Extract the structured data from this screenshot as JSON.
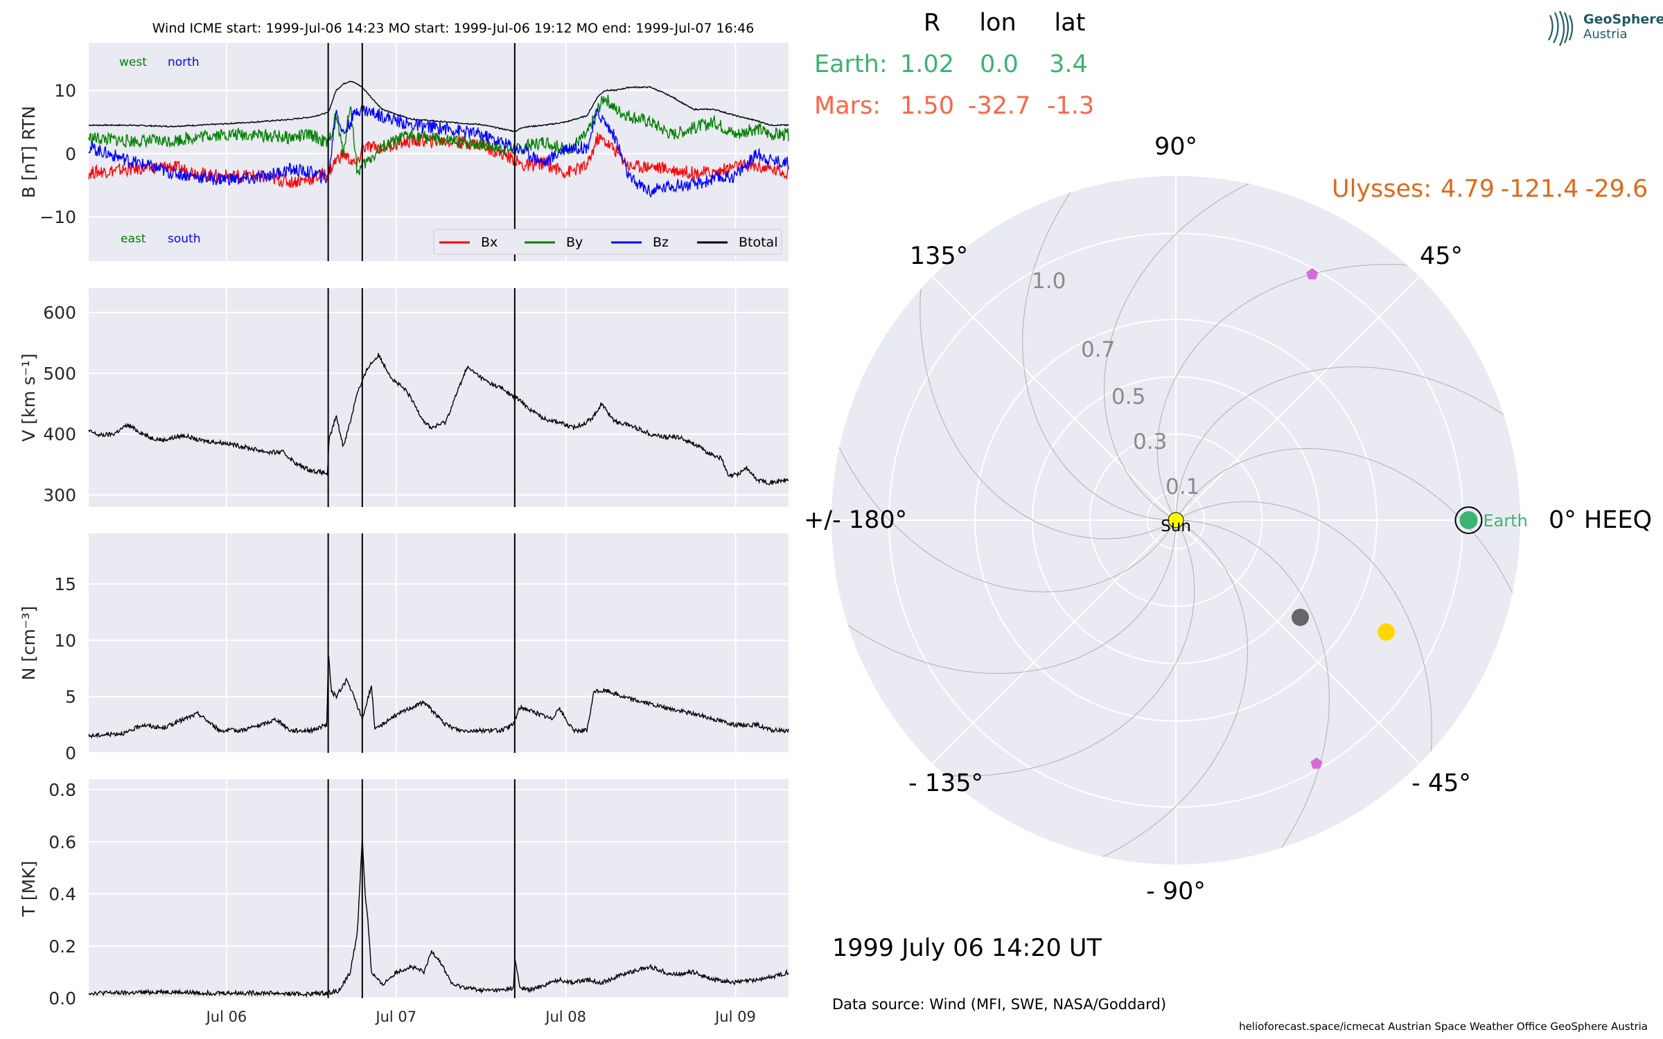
{
  "timeseries": {
    "title": "Wind    ICME start: 1999-Jul-06 14:23   MO start: 1999-Jul-06 19:12   MO end: 1999-Jul-07 16:46",
    "x_tick_labels": [
      "Jul 06",
      "Jul 07",
      "Jul 08",
      "Jul 09"
    ],
    "x_tick_hours": [
      24,
      48,
      72,
      96
    ],
    "x_range_hours": [
      4.5,
      103.5
    ],
    "x_origin": "1999-07-05 00:00 UT",
    "event_lines_hours": [
      38.38,
      43.2,
      64.77
    ],
    "panels": [
      {
        "key": "B",
        "ylabel": "B [nT] RTN",
        "ylim": [
          -17,
          17.5
        ],
        "yticks": [
          -10,
          0,
          10
        ],
        "ytick_labels": [
          "−10",
          "0",
          "10"
        ]
      },
      {
        "key": "V",
        "ylabel": "V [km s⁻¹]",
        "ylim": [
          280,
          640
        ],
        "yticks": [
          300,
          400,
          500,
          600
        ],
        "ytick_labels": [
          "300",
          "400",
          "500",
          "600"
        ]
      },
      {
        "key": "N",
        "ylabel": "N [cm⁻³]",
        "ylim": [
          0,
          19.5
        ],
        "yticks": [
          0,
          5,
          10,
          15
        ],
        "ytick_labels": [
          "0",
          "5",
          "10",
          "15"
        ]
      },
      {
        "key": "T",
        "ylabel": "T [MK]",
        "ylim": [
          0,
          0.84
        ],
        "yticks": [
          0.0,
          0.2,
          0.4,
          0.6,
          0.8
        ],
        "ytick_labels": [
          "0.0",
          "0.2",
          "0.4",
          "0.6",
          "0.8"
        ]
      }
    ],
    "direction_labels": {
      "west": "west",
      "north": "north",
      "east": "east",
      "south": "south"
    },
    "legend": [
      {
        "name": "Bx",
        "color": "#ff0000"
      },
      {
        "name": "By",
        "color": "#008000"
      },
      {
        "name": "Bz",
        "color": "#0000ff"
      },
      {
        "name": "Btotal",
        "color": "#000000"
      }
    ]
  },
  "chart_data": [
    {
      "type": "line",
      "title": "Wind    ICME start: 1999-Jul-06 14:23   MO start: 1999-Jul-06 19:12   MO end: 1999-Jul-07 16:46",
      "ylabel": "B [nT] RTN",
      "ylim": [
        -17,
        17.5
      ],
      "x_unit": "hours since 1999-07-05 00:00 UT",
      "x": [
        4.5,
        10,
        16,
        22,
        28,
        33,
        36,
        38.4,
        39.5,
        40.5,
        41.5,
        42.5,
        43.2,
        46,
        50,
        55,
        60,
        64.8,
        66,
        69,
        72,
        75,
        76.5,
        77.5,
        79,
        81,
        84,
        87,
        90,
        93,
        96,
        99,
        101,
        103.5
      ],
      "series": [
        {
          "name": "Btotal",
          "color": "#000000",
          "values": [
            4.5,
            4.5,
            4.3,
            4.6,
            5.0,
            5.4,
            5.8,
            6.5,
            10.0,
            11.0,
            11.5,
            11.0,
            10.5,
            7.0,
            5.5,
            5.0,
            4.6,
            3.5,
            4.2,
            4.5,
            5.0,
            6.0,
            9.0,
            10.0,
            10.0,
            10.5,
            10.5,
            9.0,
            7.0,
            7.0,
            6.0,
            5.2,
            4.5,
            4.5
          ]
        },
        {
          "name": "Bx",
          "color": "#ff0000",
          "values": [
            -3.0,
            -2.5,
            -2.0,
            -3.5,
            -3.5,
            -4.5,
            -4.0,
            -3.0,
            -1.0,
            0.0,
            -1.0,
            -2.0,
            1.0,
            1.0,
            2.0,
            2.0,
            1.5,
            -1.0,
            -2.0,
            -1.5,
            -3.0,
            -2.0,
            2.5,
            2.0,
            0.5,
            -2.0,
            -2.0,
            -2.5,
            -3.0,
            -3.0,
            -2.0,
            -2.0,
            -2.5,
            -3.0
          ]
        },
        {
          "name": "By",
          "color": "#008000",
          "values": [
            2.5,
            2.0,
            2.0,
            3.0,
            3.0,
            2.5,
            3.0,
            1.5,
            6.0,
            0.0,
            8.0,
            -3.0,
            -2.0,
            1.0,
            3.0,
            2.0,
            1.5,
            0.5,
            1.0,
            2.0,
            0.5,
            3.0,
            7.0,
            9.0,
            7.0,
            6.0,
            5.0,
            3.0,
            4.0,
            5.0,
            3.0,
            4.0,
            3.0,
            3.0
          ]
        },
        {
          "name": "Bz",
          "color": "#0000ff",
          "values": [
            1.0,
            -1.0,
            -3.0,
            -4.0,
            -4.0,
            -2.5,
            -3.0,
            -4.0,
            7.0,
            3.0,
            5.0,
            7.0,
            7.0,
            6.0,
            4.5,
            4.0,
            3.0,
            1.0,
            0.5,
            -1.5,
            1.0,
            1.0,
            6.5,
            5.0,
            2.5,
            -4.0,
            -6.0,
            -5.0,
            -5.0,
            -4.0,
            -3.5,
            0.0,
            -1.0,
            -1.5
          ]
        }
      ]
    },
    {
      "type": "line",
      "ylabel": "V [km s⁻¹]",
      "ylim": [
        280,
        640
      ],
      "x_unit": "hours since 1999-07-05 00:00 UT",
      "x": [
        4.5,
        6,
        8,
        10,
        13,
        15,
        18,
        20,
        24,
        28,
        30,
        32,
        34,
        36,
        38.3,
        38.5,
        39.5,
        40.5,
        41.5,
        42.5,
        43,
        44,
        45.5,
        47.5,
        49.5,
        52,
        53,
        55,
        58,
        61,
        63,
        64.7,
        65,
        67,
        69,
        71,
        73,
        75,
        76,
        77,
        79,
        81,
        84,
        86,
        88,
        90,
        92,
        94,
        95,
        96.5,
        97.5,
        99,
        101,
        103.5
      ],
      "series": [
        {
          "name": "V",
          "color": "#000000",
          "values": [
            405,
            398,
            400,
            415,
            395,
            390,
            398,
            390,
            385,
            375,
            370,
            370,
            350,
            340,
            335,
            390,
            430,
            380,
            420,
            470,
            480,
            510,
            530,
            490,
            470,
            420,
            410,
            420,
            510,
            485,
            475,
            460,
            460,
            440,
            425,
            420,
            410,
            420,
            430,
            450,
            420,
            415,
            400,
            395,
            395,
            385,
            370,
            360,
            330,
            335,
            345,
            325,
            320,
            325
          ]
        }
      ]
    },
    {
      "type": "line",
      "ylabel": "N [cm⁻³]",
      "ylim": [
        0,
        19.5
      ],
      "x_unit": "hours since 1999-07-05 00:00 UT",
      "x": [
        4.5,
        10,
        12,
        15,
        18,
        20,
        23,
        26,
        29,
        31,
        33,
        36,
        38.2,
        38.4,
        38.8,
        39.5,
        41,
        42,
        43.2,
        44.5,
        45,
        47,
        50,
        52,
        55,
        57,
        60,
        63,
        64.5,
        65.5,
        66,
        68,
        70,
        71,
        72,
        73,
        75,
        76,
        78,
        80,
        83,
        86,
        90,
        93,
        96,
        99,
        101,
        103.5
      ],
      "series": [
        {
          "name": "N",
          "color": "#000000",
          "values": [
            1.5,
            1.8,
            2.5,
            2.2,
            3.0,
            3.5,
            2.0,
            2.0,
            2.5,
            3.0,
            2.0,
            2.0,
            2.5,
            9.0,
            5.5,
            5.0,
            6.5,
            5.0,
            3.0,
            6.0,
            2.0,
            3.0,
            4.0,
            4.5,
            2.5,
            2.0,
            2.0,
            2.0,
            2.5,
            4.0,
            4.0,
            3.5,
            3.0,
            4.0,
            3.0,
            2.0,
            2.0,
            5.5,
            5.5,
            5.0,
            4.5,
            4.0,
            3.5,
            3.0,
            2.5,
            2.5,
            2.0,
            2.0
          ]
        }
      ]
    },
    {
      "type": "line",
      "ylabel": "T [MK]",
      "ylim": [
        0,
        0.84
      ],
      "x_unit": "hours since 1999-07-05 00:00 UT",
      "x": [
        4.5,
        10,
        15,
        20,
        25,
        30,
        35,
        38.3,
        40,
        41.5,
        42.5,
        43.2,
        43.6,
        44,
        44.5,
        46,
        48,
        50,
        52,
        53,
        54,
        56,
        60,
        63,
        64.6,
        64.8,
        65.5,
        67,
        69,
        71,
        73,
        75,
        77,
        79,
        81,
        84,
        87,
        90,
        93,
        96,
        99,
        101,
        103.5
      ],
      "series": [
        {
          "name": "T",
          "color": "#000000",
          "values": [
            0.02,
            0.02,
            0.025,
            0.02,
            0.02,
            0.02,
            0.015,
            0.02,
            0.03,
            0.1,
            0.25,
            0.62,
            0.4,
            0.3,
            0.1,
            0.05,
            0.1,
            0.12,
            0.1,
            0.18,
            0.15,
            0.05,
            0.03,
            0.03,
            0.04,
            0.15,
            0.04,
            0.03,
            0.05,
            0.07,
            0.06,
            0.07,
            0.06,
            0.08,
            0.1,
            0.12,
            0.09,
            0.1,
            0.07,
            0.06,
            0.07,
            0.08,
            0.1
          ]
        }
      ]
    },
    {
      "type": "scatter",
      "subtype": "polar",
      "angle_labels": [
        "0° HEEQ",
        "45°",
        "90°",
        "135°",
        "+/- 180°",
        "- 135°",
        "- 90°",
        "- 45°"
      ],
      "radial_ticks": [
        0.1,
        0.3,
        0.5,
        0.7,
        1.0
      ],
      "radial_tick_labels": [
        "0.1",
        "0.3",
        "0.5",
        "0.7",
        "1.0"
      ],
      "r_max": 1.2,
      "points": [
        {
          "name": "Sun",
          "r": 0.0,
          "lon": 0,
          "color": "#ffff00"
        },
        {
          "name": "Earth",
          "r": 1.02,
          "lon": 0.0,
          "color": "#3cb371"
        },
        {
          "name": "",
          "r": 0.55,
          "lon": -38,
          "color": "#666666"
        },
        {
          "name": "",
          "r": 0.83,
          "lon": -28,
          "color": "#ffd700"
        },
        {
          "name": "",
          "r": 0.98,
          "lon": 61,
          "color": "#d66bd6"
        },
        {
          "name": "",
          "r": 0.98,
          "lon": -60,
          "color": "#d66bd6"
        }
      ]
    }
  ],
  "positions": {
    "headers": [
      "R",
      "lon",
      "lat"
    ],
    "earth": {
      "label": "Earth:",
      "r": "1.02",
      "lon": "0.0",
      "lat": "3.4",
      "color": "#3cb371"
    },
    "mars": {
      "label": "Mars:",
      "r": "1.50",
      "lon": "-32.7",
      "lat": "-1.3",
      "color": "#ff6347"
    },
    "ulysses": {
      "label": "Ulysses:",
      "r": "4.79",
      "lon": "-121.4",
      "lat": "-29.6",
      "color": "#e0691a"
    }
  },
  "polar_labels": {
    "sun": "Sun",
    "earth": "Earth"
  },
  "date_label": "1999 July 06  14:20 UT",
  "data_source": "Data source: Wind (MFI, SWE, NASA/Goddard)",
  "footer": "helioforecast.space/icmecat   Austrian Space Weather Office   GeoSphere Austria",
  "logo": {
    "line1": "GeoSphere",
    "line2": "Austria"
  }
}
